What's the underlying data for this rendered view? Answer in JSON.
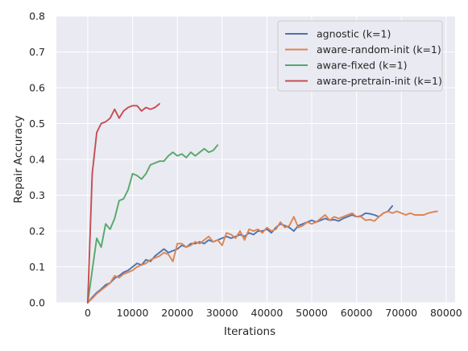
{
  "chart_data": {
    "type": "line",
    "title": "",
    "xlabel": "Iterations",
    "ylabel": "Repair Accuracy",
    "xlim": [
      -7000,
      82000
    ],
    "ylim": [
      0.0,
      0.8
    ],
    "x_ticks": [
      0,
      10000,
      20000,
      30000,
      40000,
      50000,
      60000,
      70000,
      80000
    ],
    "y_ticks": [
      0.0,
      0.1,
      0.2,
      0.3,
      0.4,
      0.5,
      0.6,
      0.7,
      0.8
    ],
    "x_tick_labels": [
      "0",
      "10000",
      "20000",
      "30000",
      "40000",
      "50000",
      "60000",
      "70000",
      "80000"
    ],
    "y_tick_labels": [
      "0.0",
      "0.1",
      "0.2",
      "0.3",
      "0.4",
      "0.5",
      "0.6",
      "0.7",
      "0.8"
    ],
    "grid": true,
    "background": "#eaeaf2",
    "legend_position": "top-right",
    "series": [
      {
        "name": "agnostic (k=1)",
        "color": "#4c72b0",
        "x": [
          0,
          1000,
          2000,
          3000,
          4000,
          5000,
          6000,
          7000,
          8000,
          9000,
          10000,
          11000,
          12000,
          13000,
          14000,
          15000,
          16000,
          17000,
          18000,
          19000,
          20000,
          21000,
          22000,
          23000,
          24000,
          25000,
          26000,
          27000,
          28000,
          29000,
          30000,
          31000,
          32000,
          33000,
          34000,
          35000,
          36000,
          37000,
          38000,
          39000,
          40000,
          41000,
          42000,
          43000,
          44000,
          45000,
          46000,
          47000,
          48000,
          49000,
          50000,
          51000,
          52000,
          53000,
          54000,
          55000,
          56000,
          57000,
          58000,
          59000,
          60000,
          61000,
          62000,
          63000,
          64000,
          65000,
          66000,
          67000,
          68000
        ],
        "y": [
          0.0,
          0.015,
          0.028,
          0.038,
          0.05,
          0.055,
          0.068,
          0.075,
          0.085,
          0.09,
          0.1,
          0.11,
          0.105,
          0.12,
          0.115,
          0.13,
          0.14,
          0.15,
          0.14,
          0.145,
          0.15,
          0.16,
          0.155,
          0.165,
          0.165,
          0.17,
          0.165,
          0.175,
          0.17,
          0.175,
          0.18,
          0.185,
          0.18,
          0.185,
          0.19,
          0.185,
          0.195,
          0.19,
          0.2,
          0.2,
          0.205,
          0.195,
          0.21,
          0.22,
          0.215,
          0.21,
          0.2,
          0.215,
          0.22,
          0.225,
          0.23,
          0.225,
          0.23,
          0.235,
          0.23,
          0.232,
          0.228,
          0.235,
          0.24,
          0.245,
          0.24,
          0.242,
          0.25,
          0.248,
          0.245,
          0.24,
          0.25,
          0.255,
          0.27
        ]
      },
      {
        "name": "aware-random-init (k=1)",
        "color": "#dd8452",
        "x": [
          0,
          1000,
          2000,
          3000,
          4000,
          5000,
          6000,
          7000,
          8000,
          9000,
          10000,
          11000,
          12000,
          13000,
          14000,
          15000,
          16000,
          17000,
          18000,
          19000,
          20000,
          21000,
          22000,
          23000,
          24000,
          25000,
          26000,
          27000,
          28000,
          29000,
          30000,
          31000,
          32000,
          33000,
          34000,
          35000,
          36000,
          37000,
          38000,
          39000,
          40000,
          41000,
          42000,
          43000,
          44000,
          45000,
          46000,
          47000,
          48000,
          49000,
          50000,
          51000,
          52000,
          53000,
          54000,
          55000,
          56000,
          57000,
          58000,
          59000,
          60000,
          61000,
          62000,
          63000,
          64000,
          65000,
          66000,
          67000,
          68000,
          69000,
          70000,
          71000,
          72000,
          73000,
          74000,
          75000,
          76000,
          77000,
          78000
        ],
        "y": [
          0.0,
          0.012,
          0.025,
          0.035,
          0.045,
          0.055,
          0.075,
          0.07,
          0.08,
          0.085,
          0.09,
          0.1,
          0.105,
          0.11,
          0.12,
          0.125,
          0.13,
          0.14,
          0.135,
          0.115,
          0.165,
          0.165,
          0.155,
          0.16,
          0.17,
          0.165,
          0.175,
          0.185,
          0.17,
          0.175,
          0.16,
          0.195,
          0.19,
          0.18,
          0.2,
          0.175,
          0.205,
          0.2,
          0.205,
          0.195,
          0.21,
          0.2,
          0.205,
          0.225,
          0.21,
          0.215,
          0.24,
          0.21,
          0.215,
          0.225,
          0.22,
          0.225,
          0.235,
          0.245,
          0.23,
          0.24,
          0.235,
          0.24,
          0.245,
          0.25,
          0.24,
          0.24,
          0.23,
          0.232,
          0.228,
          0.24,
          0.25,
          0.255,
          0.25,
          0.255,
          0.25,
          0.245,
          0.25,
          0.245,
          0.245,
          0.245,
          0.25,
          0.253,
          0.255
        ]
      },
      {
        "name": "aware-fixed (k=1)",
        "color": "#55a868",
        "x": [
          0,
          1000,
          2000,
          3000,
          4000,
          5000,
          6000,
          7000,
          8000,
          9000,
          10000,
          11000,
          12000,
          13000,
          14000,
          15000,
          16000,
          17000,
          18000,
          19000,
          20000,
          21000,
          22000,
          23000,
          24000,
          25000,
          26000,
          27000,
          28000,
          29000
        ],
        "y": [
          0.0,
          0.09,
          0.18,
          0.155,
          0.22,
          0.205,
          0.235,
          0.285,
          0.29,
          0.315,
          0.36,
          0.355,
          0.345,
          0.36,
          0.385,
          0.39,
          0.395,
          0.395,
          0.41,
          0.42,
          0.41,
          0.415,
          0.405,
          0.42,
          0.41,
          0.42,
          0.43,
          0.42,
          0.425,
          0.44
        ]
      },
      {
        "name": "aware-pretrain-init (k=1)",
        "color": "#c44e52",
        "x": [
          0,
          1000,
          2000,
          3000,
          4000,
          5000,
          6000,
          7000,
          8000,
          9000,
          10000,
          11000,
          12000,
          13000,
          14000,
          15000,
          16000
        ],
        "y": [
          0.0,
          0.36,
          0.475,
          0.5,
          0.505,
          0.515,
          0.54,
          0.515,
          0.535,
          0.545,
          0.55,
          0.55,
          0.535,
          0.545,
          0.54,
          0.545,
          0.555
        ]
      }
    ]
  }
}
